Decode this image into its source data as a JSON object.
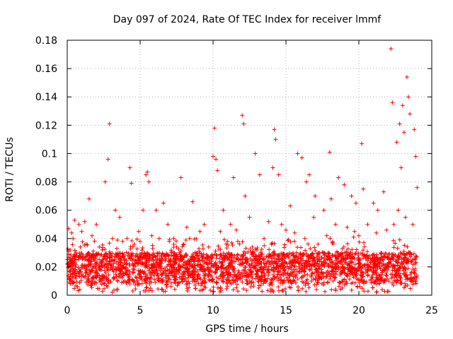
{
  "chart_data": {
    "type": "scatter",
    "title": "Day 097 of 2024, Rate Of TEC Index for receiver lmmf",
    "xlabel": "GPS time / hours",
    "ylabel": "ROTI / TECUs",
    "xlim": [
      0,
      25
    ],
    "ylim": [
      0,
      0.18
    ],
    "xticks": [
      0,
      5,
      10,
      15,
      20,
      25
    ],
    "yticks": [
      0,
      0.02,
      0.04,
      0.06,
      0.08,
      0.1,
      0.12,
      0.14,
      0.16,
      0.18
    ],
    "xtick_labels": [
      "0",
      "5",
      "10",
      "15",
      "20",
      "25"
    ],
    "ytick_labels": [
      "0",
      "0.02",
      "0.04",
      "0.06",
      "0.08",
      "0.1",
      "0.12",
      "0.14",
      "0.16",
      "0.18"
    ],
    "grid": true,
    "marker": "+",
    "color": "#ff0000",
    "series": [
      {
        "name": "ROTI",
        "x": [
          0.1,
          0.3,
          0.5,
          0.8,
          1.2,
          1.5,
          2.0,
          2.6,
          2.8,
          2.9,
          3.3,
          3.6,
          4.3,
          4.4,
          5.2,
          5.4,
          5.5,
          5.6,
          6.1,
          6.6,
          7.8,
          8.6,
          9.4,
          10.0,
          10.1,
          10.2,
          10.3,
          11.2,
          11.4,
          12.0,
          12.1,
          12.2,
          12.9,
          13.2,
          14.1,
          14.2,
          14.3,
          14.5,
          15.3,
          15.8,
          16.1,
          16.4,
          16.6,
          17.0,
          18.0,
          18.1,
          18.6,
          19.0,
          20.2,
          20.3,
          21.0,
          21.7,
          22.2,
          22.3,
          22.6,
          22.8,
          23.0,
          23.1,
          23.3,
          23.4,
          23.5,
          23.8,
          23.9,
          24.0,
          0.4,
          1.0,
          3.1,
          4.9,
          6.9,
          8.2,
          9.1,
          10.7,
          12.5,
          13.8,
          16.9,
          19.5,
          21.3,
          22.9,
          7.3,
          17.6,
          11.7,
          19.8,
          0.2,
          0.6,
          0.9,
          1.3,
          1.7,
          2.2,
          2.4,
          3.8,
          4.1,
          4.6,
          5.0,
          5.8,
          6.3,
          7.0,
          7.5,
          8.0,
          8.4,
          8.9,
          9.7,
          10.5,
          11.0,
          11.6,
          12.7,
          13.0,
          13.5,
          14.7,
          15.0,
          15.6,
          16.3,
          17.2,
          17.8,
          18.4,
          19.2,
          19.7,
          20.0,
          20.6,
          21.2,
          21.9,
          22.4,
          22.7,
          23.2,
          23.7
        ],
        "y": [
          0.047,
          0.044,
          0.053,
          0.05,
          0.052,
          0.068,
          0.05,
          0.08,
          0.096,
          0.121,
          0.06,
          0.055,
          0.09,
          0.079,
          0.06,
          0.085,
          0.087,
          0.08,
          0.06,
          0.065,
          0.083,
          0.066,
          0.05,
          0.098,
          0.118,
          0.096,
          0.088,
          0.05,
          0.083,
          0.127,
          0.121,
          0.07,
          0.1,
          0.085,
          0.09,
          0.117,
          0.11,
          0.085,
          0.063,
          0.1,
          0.097,
          0.08,
          0.085,
          0.07,
          0.101,
          0.068,
          0.083,
          0.078,
          0.107,
          0.075,
          0.065,
          0.073,
          0.174,
          0.136,
          0.108,
          0.121,
          0.134,
          0.115,
          0.154,
          0.14,
          0.128,
          0.117,
          0.098,
          0.076,
          0.04,
          0.045,
          0.04,
          0.045,
          0.05,
          0.048,
          0.045,
          0.06,
          0.055,
          0.052,
          0.055,
          0.07,
          0.06,
          0.09,
          0.04,
          0.06,
          0.038,
          0.065,
          0.032,
          0.03,
          0.034,
          0.036,
          0.042,
          0.034,
          0.032,
          0.038,
          0.04,
          0.036,
          0.038,
          0.042,
          0.04,
          0.038,
          0.034,
          0.036,
          0.04,
          0.03,
          0.034,
          0.045,
          0.038,
          0.046,
          0.034,
          0.032,
          0.04,
          0.05,
          0.046,
          0.044,
          0.04,
          0.036,
          0.042,
          0.05,
          0.048,
          0.045,
          0.042,
          0.05,
          0.044,
          0.046,
          0.05,
          0.06,
          0.055,
          0.05
        ]
      }
    ],
    "dense_band": {
      "x_range": [
        0,
        24
      ],
      "y_base_range": [
        0.008,
        0.03
      ],
      "y_floor": 0.002
    }
  }
}
